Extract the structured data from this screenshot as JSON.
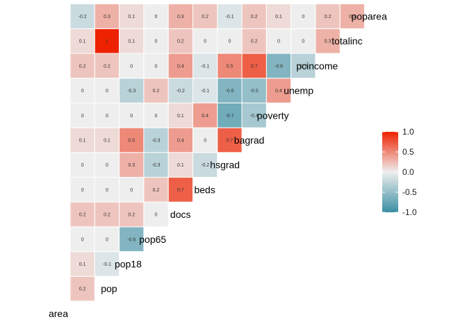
{
  "chart_data": {
    "type": "heatmap",
    "variables": [
      "area",
      "pop",
      "pop18",
      "pop65",
      "docs",
      "beds",
      "hsgrad",
      "bagrad",
      "poverty",
      "unemp",
      "pcincome",
      "totalinc",
      "poparea"
    ],
    "rows": [
      {
        "label": "pop",
        "values": [
          0.2
        ]
      },
      {
        "label": "pop18",
        "values": [
          0.1,
          -0.1
        ]
      },
      {
        "label": "pop65",
        "values": [
          0,
          0,
          -0.6
        ]
      },
      {
        "label": "docs",
        "values": [
          0.2,
          0.2,
          0.2,
          0
        ]
      },
      {
        "label": "beds",
        "values": [
          0,
          0,
          0,
          0.2,
          0.7
        ]
      },
      {
        "label": "hsgrad",
        "values": [
          0,
          0,
          0.3,
          -0.3,
          0.1,
          -0.2
        ]
      },
      {
        "label": "bagrad",
        "values": [
          0.1,
          0.1,
          0.5,
          -0.3,
          0.4,
          0,
          0.7
        ]
      },
      {
        "label": "poverty",
        "values": [
          0,
          0,
          0,
          0,
          0.1,
          0.4,
          -0.7,
          -0.4
        ]
      },
      {
        "label": "unemp",
        "values": [
          0,
          0,
          -0.3,
          0.2,
          -0.2,
          -0.1,
          -0.6,
          -0.5,
          0.4
        ]
      },
      {
        "label": "pcincome",
        "values": [
          0.2,
          0.2,
          0,
          0,
          0.4,
          -0.1,
          0.5,
          0.7,
          -0.6,
          -0.3
        ]
      },
      {
        "label": "totalinc",
        "values": [
          0.1,
          1,
          0.1,
          0,
          0.2,
          0,
          0,
          0.2,
          0,
          0,
          0.3
        ]
      },
      {
        "label": "poparea",
        "values": [
          -0.2,
          0.3,
          0.1,
          0,
          0.3,
          0.2,
          -0.1,
          0.2,
          0.1,
          0,
          0.2,
          0.3
        ]
      }
    ],
    "bottom_label": "area",
    "label_display": {
      "area": "area"
    },
    "color_scale": {
      "low": "#3a8fa3",
      "mid": "#eeeeee",
      "high": "#ee2200",
      "range": [
        -1,
        1
      ]
    },
    "legend": {
      "ticks": [
        "1.0",
        "0.5",
        "0.0",
        "-0.5",
        "-1.0"
      ],
      "values": [
        1,
        0.5,
        0,
        -0.5,
        -1
      ],
      "position": "right"
    },
    "title": "",
    "xlabel": "",
    "ylabel": ""
  }
}
